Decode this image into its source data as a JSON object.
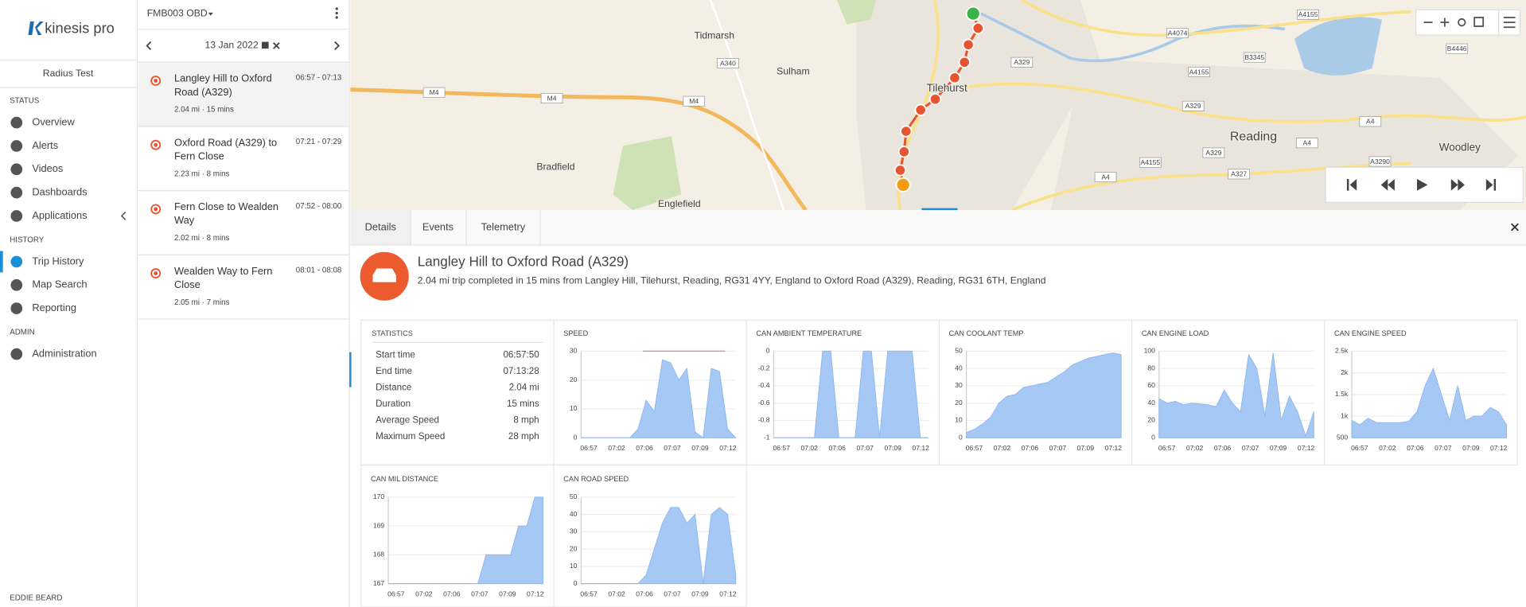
{
  "sidebar": {
    "brand": "kinesis pro",
    "account": "Radius Test",
    "sections": [
      {
        "title": "STATUS",
        "items": [
          "Overview",
          "Alerts",
          "Videos",
          "Dashboards",
          "Applications"
        ]
      },
      {
        "title": "HISTORY",
        "items": [
          "Trip History",
          "Map Search",
          "Reporting"
        ]
      },
      {
        "title": "ADMIN",
        "items": [
          "Administration"
        ]
      }
    ],
    "user": "EDDIE BEARD"
  },
  "trips": {
    "device": "FMB003 OBD",
    "date": "13 Jan 2022",
    "items": [
      {
        "title": "Langley Hill to Oxford Road (A329)",
        "time": "06:57 - 07:13",
        "meta": "2.04 mi · 15 mins"
      },
      {
        "title": "Oxford Road (A329) to Fern Close",
        "time": "07:21 - 07:29",
        "meta": "2.23 mi · 8 mins"
      },
      {
        "title": "Fern Close to Wealden Way",
        "time": "07:52 - 08:00",
        "meta": "2.02 mi · 8 mins"
      },
      {
        "title": "Wealden Way to Fern Close",
        "time": "08:01 - 08:08",
        "meta": "2.05 mi · 7 mins"
      }
    ]
  },
  "map": {
    "places": [
      "Tidmarsh",
      "Sulham",
      "Tilehurst",
      "Reading",
      "Bradfield",
      "Englefield",
      "Woodley"
    ],
    "roads": [
      "M4",
      "M4",
      "M4",
      "A340",
      "A329",
      "A329",
      "A329",
      "A4074",
      "A4155",
      "A4155",
      "B3345",
      "A4",
      "A4",
      "A4",
      "A3290",
      "A327",
      "B4446",
      "A4155"
    ]
  },
  "tabs": [
    "Details",
    "Events",
    "Telemetry"
  ],
  "trip": {
    "title": "Langley Hill to Oxford Road (A329)",
    "summary": "2.04 mi trip completed in 15 mins from Langley Hill, Tilehurst, Reading, RG31 4YY, England to Oxford Road (A329), Reading, RG31 6TH, England"
  },
  "statistics": {
    "title": "STATISTICS",
    "rows": [
      [
        "Start time",
        "06:57:50"
      ],
      [
        "End time",
        "07:13:28"
      ],
      [
        "Distance",
        "2.04 mi"
      ],
      [
        "Duration",
        "15 mins"
      ],
      [
        "Average Speed",
        "8 mph"
      ],
      [
        "Maximum Speed",
        "28 mph"
      ]
    ]
  },
  "charts": [
    {
      "title": "SPEED",
      "xticks": [
        "06:57",
        "07:02",
        "07:06",
        "07:07",
        "07:09",
        "07:12"
      ],
      "ylim": [
        0,
        30
      ],
      "yticks": [
        0,
        10,
        20,
        30
      ],
      "limit": 30,
      "values": [
        0,
        0,
        0,
        0,
        0,
        0,
        0,
        3,
        13,
        9,
        27,
        26,
        20,
        24,
        2,
        0,
        24,
        23,
        3,
        0
      ]
    },
    {
      "title": "CAN AMBIENT TEMPERATURE",
      "xticks": [
        "06:57",
        "07:02",
        "07:06",
        "07:07",
        "07:09",
        "07:12"
      ],
      "ylim": [
        -1,
        0
      ],
      "yticks": [
        0,
        -0.2,
        -0.4,
        -0.6,
        -0.8,
        -1
      ],
      "values": [
        -1,
        -1,
        -1,
        -1,
        -1,
        -1,
        0,
        0,
        -1,
        -1,
        -1,
        0,
        0,
        -1,
        0,
        0,
        0,
        0,
        -1,
        -1
      ]
    },
    {
      "title": "CAN COOLANT TEMP",
      "xticks": [
        "06:57",
        "07:02",
        "07:06",
        "07:07",
        "07:09",
        "07:12"
      ],
      "ylim": [
        0,
        50
      ],
      "yticks": [
        0,
        10,
        20,
        30,
        40,
        50
      ],
      "values": [
        3,
        5,
        8,
        12,
        20,
        24,
        25,
        29,
        30,
        31,
        32,
        35,
        38,
        42,
        44,
        46,
        47,
        48,
        49,
        48
      ]
    },
    {
      "title": "CAN ENGINE LOAD",
      "xticks": [
        "06:57",
        "07:02",
        "07:06",
        "07:07",
        "07:09",
        "07:12"
      ],
      "ylim": [
        0,
        100
      ],
      "yticks": [
        0,
        20,
        40,
        60,
        80,
        100
      ],
      "values": [
        45,
        40,
        42,
        38,
        40,
        39,
        38,
        36,
        55,
        40,
        30,
        96,
        80,
        25,
        98,
        20,
        48,
        30,
        2,
        30
      ]
    },
    {
      "title": "CAN ENGINE SPEED",
      "xticks": [
        "06:57",
        "07:02",
        "07:06",
        "07:07",
        "07:09",
        "07:12"
      ],
      "ylim": [
        500,
        2500
      ],
      "yticks": [
        500,
        {
          "value": 1000,
          "label": "1k"
        },
        {
          "value": 1500,
          "label": "1.5k"
        },
        {
          "value": 2000,
          "label": "2k"
        },
        {
          "value": 2500,
          "label": "2.5k"
        }
      ],
      "values": [
        900,
        800,
        950,
        850,
        850,
        850,
        850,
        880,
        1100,
        1700,
        2100,
        1500,
        900,
        1700,
        900,
        1000,
        1000,
        1200,
        1100,
        800
      ]
    },
    {
      "title": "CAN MIL DISTANCE",
      "xticks": [
        "06:57",
        "07:02",
        "07:06",
        "07:07",
        "07:09",
        "07:12"
      ],
      "ylim": [
        167,
        170
      ],
      "yticks": [
        167,
        168,
        169,
        170
      ],
      "values": [
        167,
        167,
        167,
        167,
        167,
        167,
        167,
        167,
        167,
        167,
        167,
        167,
        168,
        168,
        168,
        168,
        169,
        169,
        170,
        170
      ]
    },
    {
      "title": "CAN ROAD SPEED",
      "xticks": [
        "06:57",
        "07:02",
        "07:06",
        "07:07",
        "07:09",
        "07:12"
      ],
      "ylim": [
        0,
        50
      ],
      "yticks": [
        0,
        10,
        20,
        30,
        40,
        50
      ],
      "values": [
        0,
        0,
        0,
        0,
        0,
        0,
        0,
        0,
        5,
        20,
        35,
        44,
        44,
        35,
        40,
        0,
        40,
        44,
        40,
        5
      ]
    }
  ]
}
